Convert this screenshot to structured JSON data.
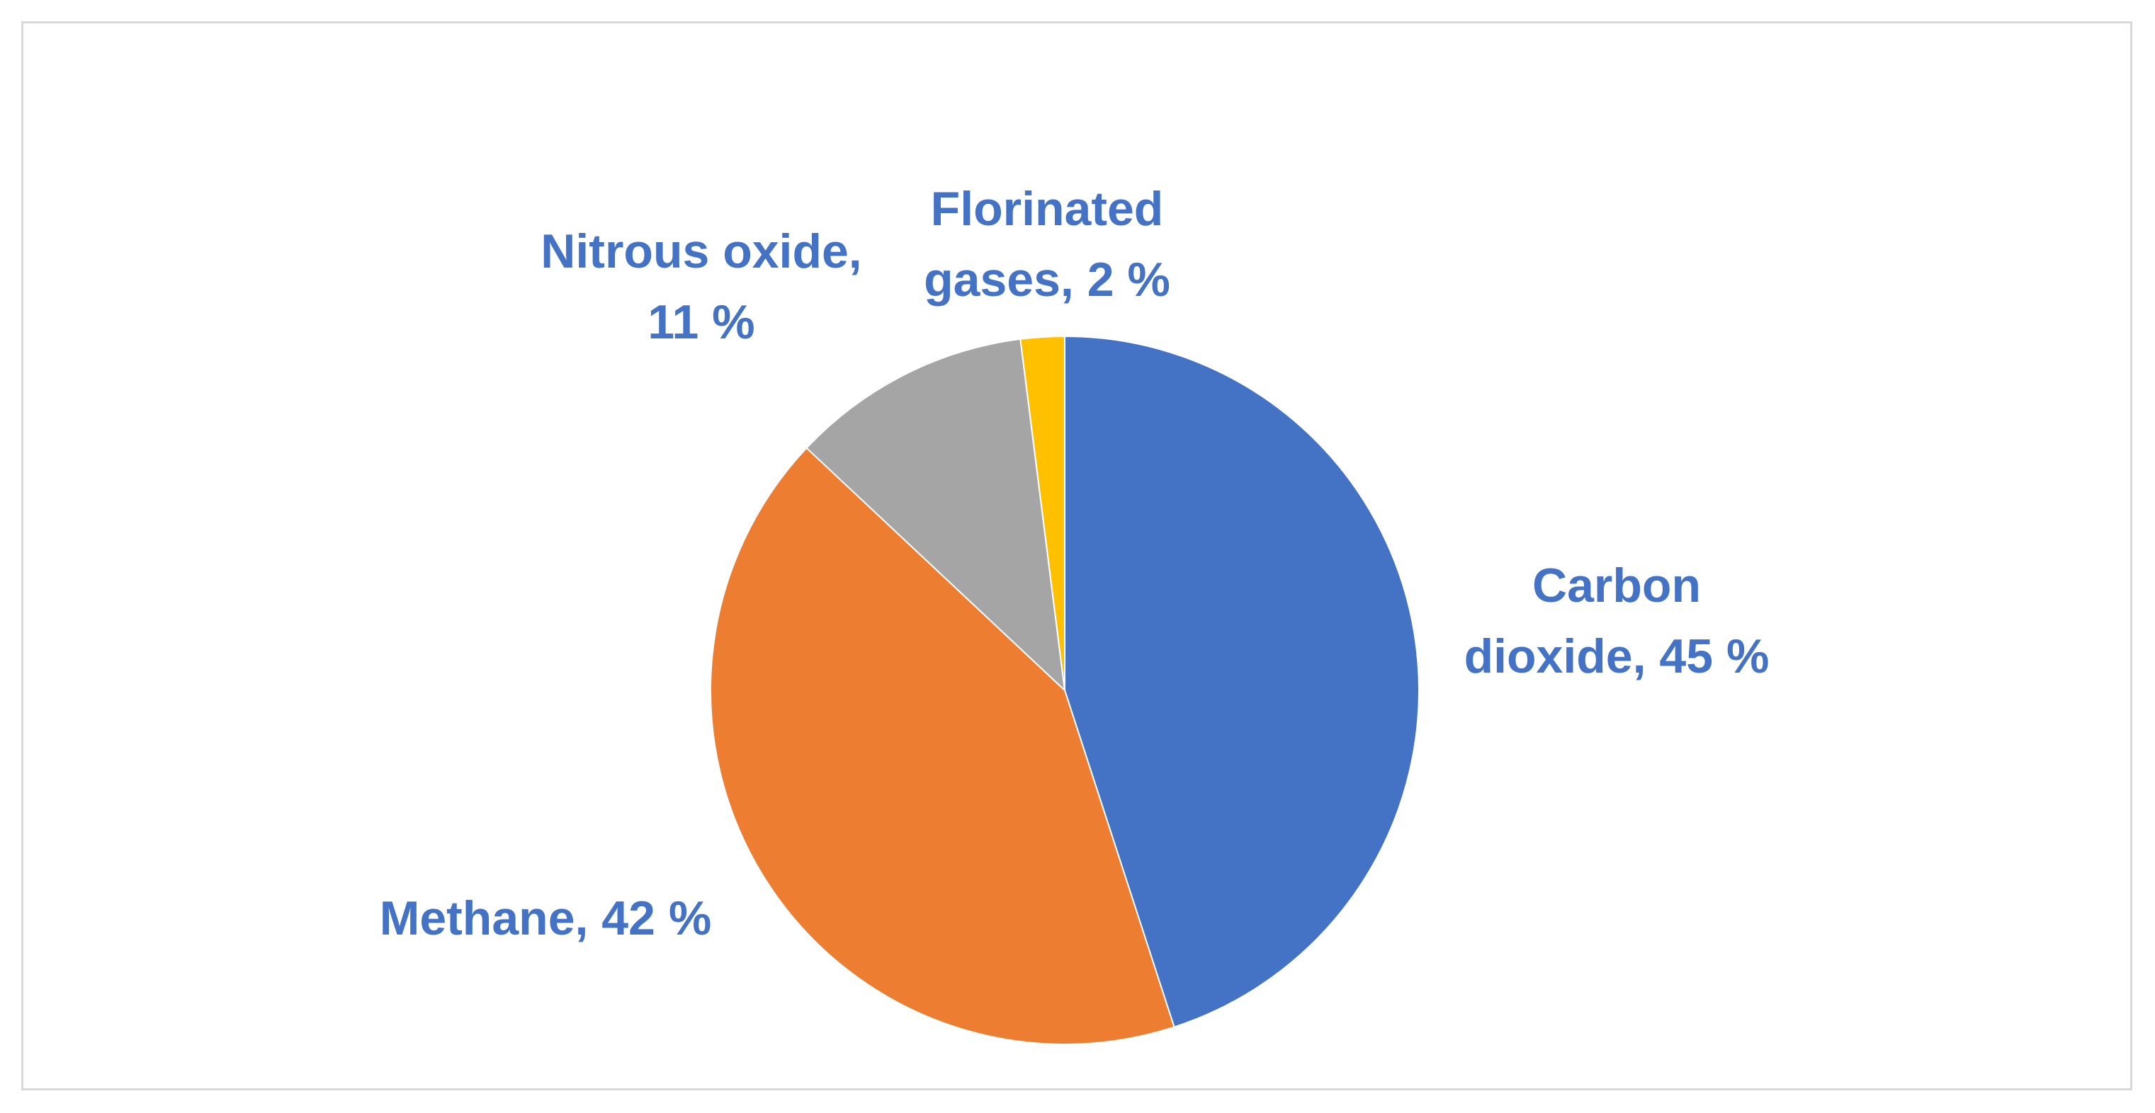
{
  "chart_data": {
    "type": "pie",
    "title": "",
    "slices": [
      {
        "label": "Carbon dioxide",
        "value": 45,
        "display": "45 %",
        "color": "#4472C4"
      },
      {
        "label": "Methane",
        "value": 42,
        "display": "42 %",
        "color": "#ED7D31"
      },
      {
        "label": "Nitrous oxide",
        "value": 11,
        "display": "11 %",
        "color": "#A5A5A5"
      },
      {
        "label": "Florinated gases",
        "value": 2,
        "display": "2 %",
        "color": "#FFC000"
      }
    ],
    "data_labels": [
      {
        "name": "data-label-carbon-dioxide",
        "lines": [
          "Carbon",
          "dioxide, 45 %"
        ]
      },
      {
        "name": "data-label-methane",
        "lines": [
          "Methane, 42 %"
        ]
      },
      {
        "name": "data-label-nitrous-oxide",
        "lines": [
          "Nitrous oxide,",
          "11 %"
        ]
      },
      {
        "name": "data-label-florinated-gases",
        "lines": [
          "Florinated",
          "gases, 2 %"
        ]
      }
    ],
    "label_color": "#4472C4",
    "legend": "none"
  }
}
